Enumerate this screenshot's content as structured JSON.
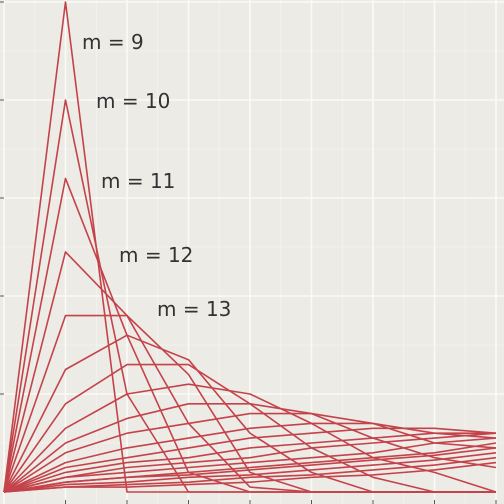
{
  "chart_data": {
    "type": "line",
    "grid": true,
    "colors": {
      "background": "#ecebe6",
      "grid": "#fbfaf7",
      "line": "#c4434a",
      "label": "#333333",
      "axis": "#555555"
    },
    "xlim": [
      0,
      8
    ],
    "ylim": [
      0,
      1
    ],
    "x": [
      0,
      1,
      2,
      3,
      4,
      5,
      6,
      7,
      8
    ],
    "series": [
      {
        "label": "m = 9",
        "values": [
          0,
          1.0,
          0,
          0,
          0,
          0,
          0,
          0,
          0
        ]
      },
      {
        "label": "m = 10",
        "values": [
          0,
          0.8,
          0.2,
          0,
          0,
          0,
          0,
          0,
          0
        ]
      },
      {
        "label": "m = 11",
        "values": [
          0,
          0.64,
          0.32,
          0.04,
          0,
          0,
          0,
          0,
          0
        ]
      },
      {
        "label": "m = 12",
        "values": [
          0,
          0.49,
          0.36,
          0.14,
          0.01,
          0,
          0,
          0,
          0
        ]
      },
      {
        "label": "m = 13",
        "values": [
          0,
          0.36,
          0.36,
          0.24,
          0.04,
          0,
          0,
          0,
          0
        ]
      },
      {
        "label": "",
        "values": [
          0,
          0.25,
          0.32,
          0.27,
          0.12,
          0.04,
          0,
          0,
          0
        ]
      },
      {
        "label": "",
        "values": [
          0,
          0.18,
          0.26,
          0.26,
          0.18,
          0.09,
          0.03,
          0,
          0
        ]
      },
      {
        "label": "",
        "values": [
          0,
          0.13,
          0.2,
          0.22,
          0.2,
          0.14,
          0.07,
          0.04,
          0
        ]
      },
      {
        "label": "",
        "values": [
          0,
          0.1,
          0.15,
          0.18,
          0.18,
          0.16,
          0.11,
          0.07,
          0.05
        ]
      },
      {
        "label": "",
        "values": [
          0,
          0.08,
          0.12,
          0.14,
          0.16,
          0.16,
          0.14,
          0.1,
          0.09
        ]
      },
      {
        "label": "",
        "values": [
          0,
          0.06,
          0.09,
          0.11,
          0.13,
          0.14,
          0.14,
          0.12,
          0.11
        ]
      },
      {
        "label": "",
        "values": [
          0,
          0.05,
          0.07,
          0.09,
          0.11,
          0.12,
          0.13,
          0.13,
          0.12
        ]
      },
      {
        "label": "",
        "values": [
          0,
          0.04,
          0.06,
          0.07,
          0.09,
          0.1,
          0.11,
          0.12,
          0.12
        ]
      },
      {
        "label": "",
        "values": [
          0,
          0.03,
          0.05,
          0.06,
          0.07,
          0.09,
          0.1,
          0.11,
          0.12
        ]
      },
      {
        "label": "",
        "values": [
          0,
          0.03,
          0.04,
          0.05,
          0.06,
          0.07,
          0.08,
          0.1,
          0.11
        ]
      },
      {
        "label": "",
        "values": [
          0,
          0.02,
          0.03,
          0.04,
          0.05,
          0.06,
          0.07,
          0.08,
          0.1
        ]
      },
      {
        "label": "",
        "values": [
          0,
          0.02,
          0.03,
          0.035,
          0.045,
          0.055,
          0.065,
          0.075,
          0.09
        ]
      },
      {
        "label": "",
        "values": [
          0,
          0.015,
          0.02,
          0.03,
          0.035,
          0.045,
          0.055,
          0.065,
          0.08
        ]
      },
      {
        "label": "",
        "values": [
          0,
          0.01,
          0.015,
          0.02,
          0.03,
          0.035,
          0.045,
          0.055,
          0.07
        ]
      },
      {
        "label": "",
        "values": [
          0,
          0.01,
          0.01,
          0.015,
          0.02,
          0.03,
          0.035,
          0.045,
          0.06
        ]
      }
    ]
  }
}
